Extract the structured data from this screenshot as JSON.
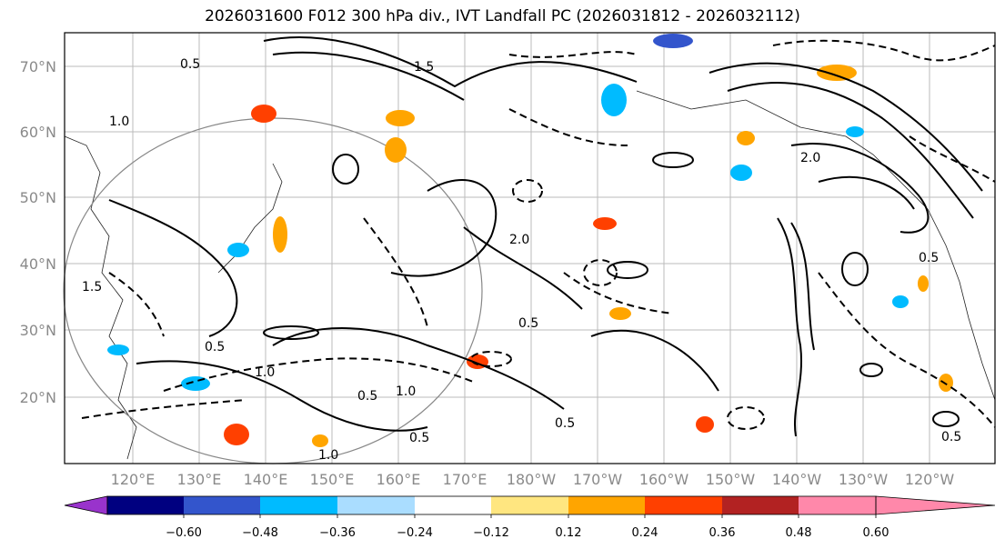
{
  "title": "2026031600 F012 300 hPa div., IVT Landfall PC (2026031812 - 2026032112)",
  "lat_labels": [
    "70°N",
    "60°N",
    "50°N",
    "40°N",
    "30°N",
    "20°N"
  ],
  "lon_labels": [
    "120°E",
    "130°E",
    "140°E",
    "150°E",
    "160°E",
    "170°E",
    "180°W",
    "170°W",
    "160°W",
    "150°W",
    "140°W",
    "130°W",
    "120°W"
  ],
  "colorbar": {
    "ticks": [
      "−0.60",
      "−0.48",
      "−0.36",
      "−0.24",
      "−0.12",
      "0.12",
      "0.24",
      "0.36",
      "0.48",
      "0.60"
    ],
    "colors": [
      "#9933cc",
      "#000080",
      "#3355cc",
      "#00bbff",
      "#aaddff",
      "#ffffff",
      "#ffe680",
      "#ffa500",
      "#ff4000",
      "#b22222",
      "#ff88aa"
    ]
  },
  "contour_labels": [
    "0.5",
    "1.0",
    "1.5",
    "2.0",
    "0.5",
    "1.0",
    "0.5",
    "2.0",
    "0.5",
    "1.0",
    "0.5",
    "0.5",
    "1.0",
    "0.5",
    "1.5",
    "0.5"
  ]
}
